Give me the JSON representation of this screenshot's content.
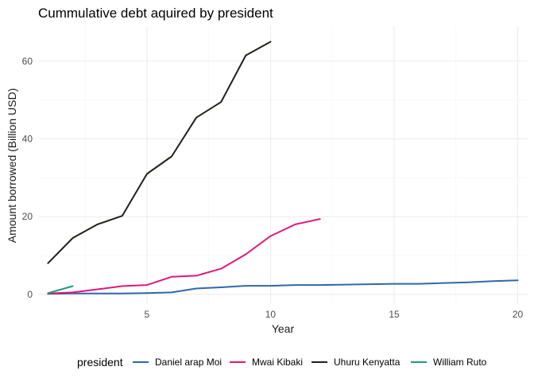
{
  "chart_data": {
    "type": "line",
    "title": "Cummulative debt  aquired by president",
    "xlabel": "Year",
    "ylabel": "Amount borrowed (Billion USD)",
    "xlim": [
      0.6,
      20.4
    ],
    "ylim": [
      -2.5,
      69
    ],
    "xticks": [
      5,
      10,
      15,
      20
    ],
    "yticks": [
      0,
      20,
      40,
      60
    ],
    "grid": true,
    "legend_title": "president",
    "legend_position": "bottom",
    "series": [
      {
        "name": "Daniel arap Moi",
        "color": "#3068a8",
        "x": [
          1,
          2,
          3,
          4,
          5,
          6,
          7,
          8,
          9,
          10,
          11,
          12,
          13,
          14,
          15,
          16,
          17,
          18,
          19,
          20
        ],
        "y": [
          0.1,
          0.2,
          0.2,
          0.2,
          0.3,
          0.5,
          1.5,
          1.8,
          2.2,
          2.2,
          2.4,
          2.4,
          2.5,
          2.6,
          2.7,
          2.7,
          2.9,
          3.1,
          3.4,
          3.6
        ]
      },
      {
        "name": "Mwai Kibaki",
        "color": "#e0187c",
        "x": [
          1,
          2,
          3,
          4,
          5,
          6,
          7,
          8,
          9,
          10,
          11,
          12
        ],
        "y": [
          0.2,
          0.5,
          1.3,
          2.1,
          2.4,
          4.5,
          4.8,
          6.6,
          10.3,
          15.0,
          18.0,
          19.4
        ]
      },
      {
        "name": "Uhuru Kenyatta",
        "color": "#20201a",
        "x": [
          1,
          2,
          3,
          4,
          5,
          6,
          7,
          8,
          9,
          10
        ],
        "y": [
          8.0,
          14.5,
          18.0,
          20.2,
          31.0,
          35.5,
          45.5,
          49.5,
          61.5,
          65.0
        ]
      },
      {
        "name": "William Ruto",
        "color": "#23977a",
        "x": [
          1,
          2
        ],
        "y": [
          0.3,
          2.1
        ]
      }
    ]
  }
}
